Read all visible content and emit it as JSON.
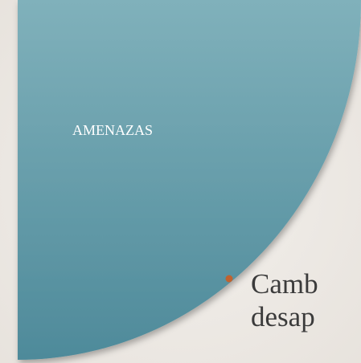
{
  "shape_label": "AMENAZAS",
  "bullet": {
    "lines": [
      "Camb",
      "desap"
    ]
  }
}
